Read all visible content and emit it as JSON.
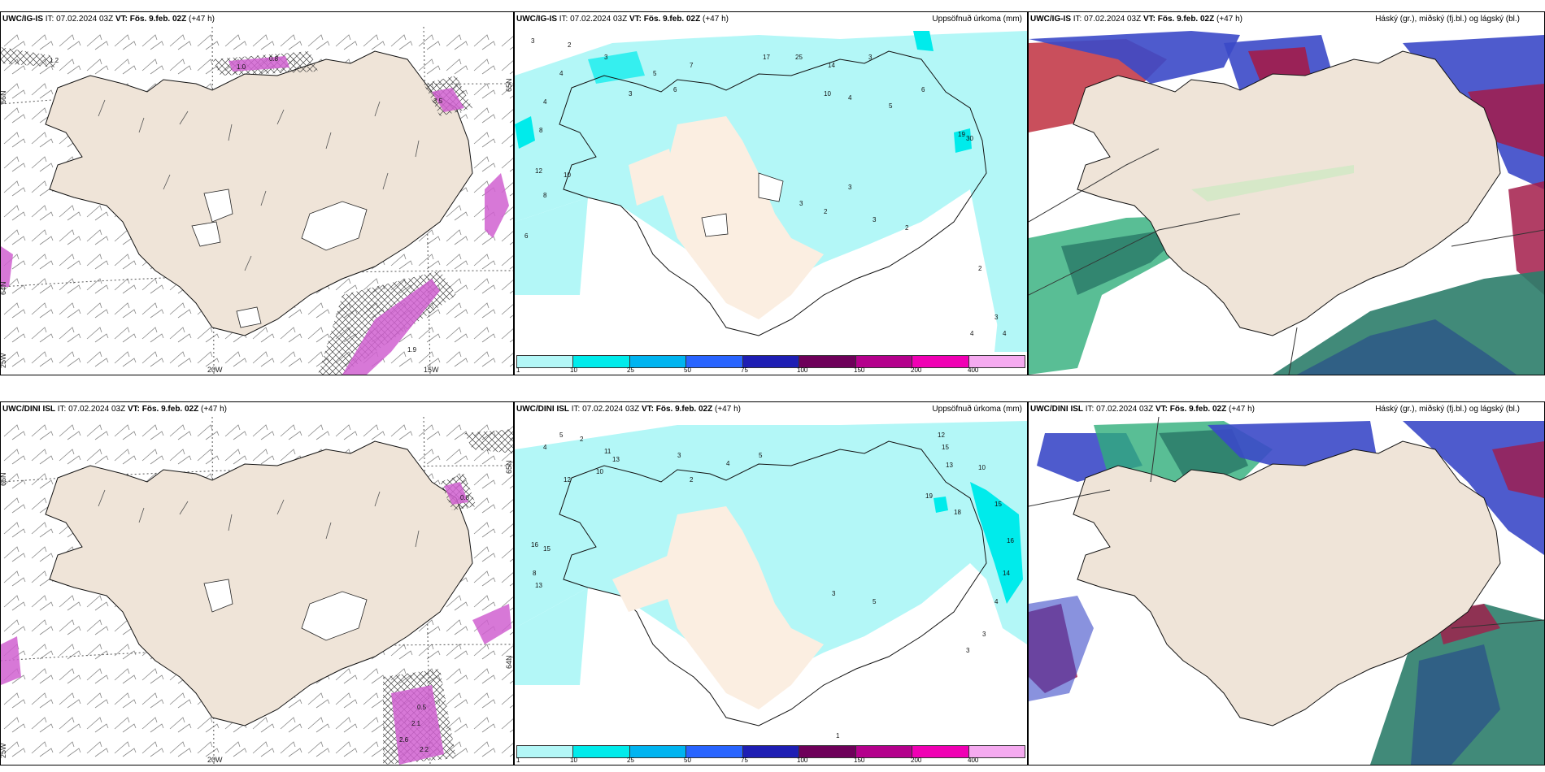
{
  "rows": [
    {
      "model": "UWC/IG-IS",
      "it_label": "IT:",
      "it_value": "07.02.2024 03Z",
      "vt_label": "VT:",
      "vt_value": "Fös. 9.feb. 02Z",
      "lead": "(+47 h)"
    },
    {
      "model": "UWC/DINI ISL",
      "it_label": "IT:",
      "it_value": "07.02.2024 03Z",
      "vt_label": "VT:",
      "vt_value": "Fös. 9.feb. 02Z",
      "lead": "(+47 h)"
    }
  ],
  "panel_titles": {
    "precip": "Uppsöfnuð úrkoma (mm)",
    "clouds": "Háský (gr.), miðský (fj.bl.) og lágský (bl.)"
  },
  "grid_labels": {
    "lon_20w": "20W",
    "lon_15w": "15W",
    "lat_66n": "66N",
    "lat_65n": "65N",
    "lat_64n": "64N",
    "lon_25w": "25W"
  },
  "colorbar": {
    "ticks": [
      "1",
      "10",
      "25",
      "50",
      "75",
      "100",
      "150",
      "200",
      "400"
    ],
    "colors": [
      "#b3f7f7",
      "#00ebeb",
      "#00b4f0",
      "#2864ff",
      "#1e1eb4",
      "#6e005a",
      "#b4008c",
      "#f000b4",
      "#f5aaf0"
    ]
  },
  "wind_values_top": [
    "1.0",
    "0.8",
    "3.5",
    "1.9",
    "1.2"
  ],
  "wind_values_bottom": [
    "0.5",
    "2.1",
    "2.6",
    "2.2",
    "0.8"
  ],
  "precip_values_top": [
    "3",
    "2",
    "4",
    "3",
    "4",
    "8",
    "12",
    "10",
    "6",
    "8",
    "3",
    "5",
    "6",
    "7",
    "17",
    "25",
    "14",
    "3",
    "4",
    "5",
    "6",
    "10",
    "19",
    "30",
    "2",
    "3",
    "4",
    "2",
    "3",
    "2",
    "3",
    "3",
    "4"
  ],
  "precip_values_bottom": [
    "5",
    "4",
    "2",
    "11",
    "10",
    "12",
    "16",
    "15",
    "13",
    "8",
    "13",
    "3",
    "2",
    "4",
    "5",
    "12",
    "15",
    "13",
    "10",
    "15",
    "19",
    "18",
    "16",
    "14",
    "4",
    "3",
    "3",
    "5",
    "3",
    "1"
  ]
}
